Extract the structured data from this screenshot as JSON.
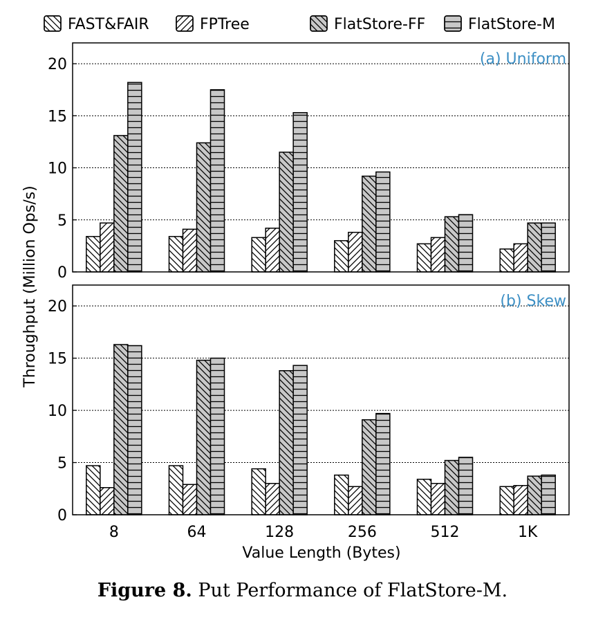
{
  "chart_data": [
    {
      "type": "bar",
      "title": "(a) Uniform",
      "xlabel": "Value Length (Bytes)",
      "ylabel": "Throughput (Million Ops/s)",
      "ylim": [
        0,
        22
      ],
      "yticks": [
        0,
        5,
        10,
        15,
        20
      ],
      "grid": true,
      "categories": [
        "8",
        "64",
        "128",
        "256",
        "512",
        "1K"
      ],
      "series": [
        {
          "name": "FAST&FAIR",
          "pattern": "backslash",
          "fill": "#ffffff",
          "values": [
            3.4,
            3.4,
            3.3,
            3.0,
            2.7,
            2.2
          ]
        },
        {
          "name": "FPTree",
          "pattern": "slash",
          "fill": "#ffffff",
          "values": [
            4.7,
            4.1,
            4.2,
            3.8,
            3.3,
            2.7
          ]
        },
        {
          "name": "FlatStore-FF",
          "pattern": "backslash",
          "fill": "#c8c8c8",
          "values": [
            13.1,
            12.4,
            11.5,
            9.2,
            5.3,
            4.7
          ]
        },
        {
          "name": "FlatStore-M",
          "pattern": "horizontal",
          "fill": "#c8c8c8",
          "values": [
            18.2,
            17.5,
            15.3,
            9.6,
            5.5,
            4.7
          ]
        }
      ]
    },
    {
      "type": "bar",
      "title": "(b) Skew",
      "xlabel": "Value Length (Bytes)",
      "ylabel": "Throughput (Million Ops/s)",
      "ylim": [
        0,
        22
      ],
      "yticks": [
        0,
        5,
        10,
        15,
        20
      ],
      "grid": true,
      "categories": [
        "8",
        "64",
        "128",
        "256",
        "512",
        "1K"
      ],
      "series": [
        {
          "name": "FAST&FAIR",
          "pattern": "backslash",
          "fill": "#ffffff",
          "values": [
            4.7,
            4.7,
            4.4,
            3.8,
            3.4,
            2.7
          ]
        },
        {
          "name": "FPTree",
          "pattern": "slash",
          "fill": "#ffffff",
          "values": [
            2.6,
            2.9,
            3.0,
            2.7,
            3.0,
            2.8
          ]
        },
        {
          "name": "FlatStore-FF",
          "pattern": "backslash",
          "fill": "#c8c8c8",
          "values": [
            16.3,
            14.8,
            13.8,
            9.1,
            5.2,
            3.7
          ]
        },
        {
          "name": "FlatStore-M",
          "pattern": "horizontal",
          "fill": "#c8c8c8",
          "values": [
            16.2,
            15.0,
            14.3,
            9.7,
            5.5,
            3.8
          ]
        }
      ]
    }
  ],
  "colors": {
    "panel_title": "#3d8fc4",
    "bar_gray": "#c8c8c8",
    "grid": "#000000"
  },
  "caption": {
    "label": "Figure 8.",
    "text": "Put Performance of FlatStore-M."
  }
}
